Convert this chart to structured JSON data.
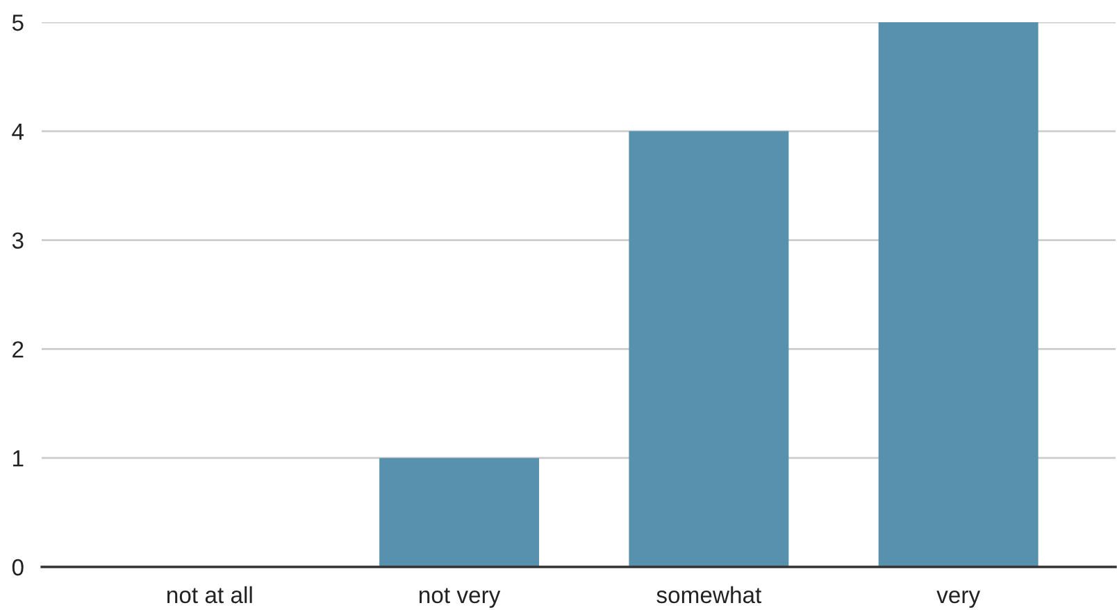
{
  "chart_data": {
    "type": "bar",
    "categories": [
      "not at all",
      "not very",
      "somewhat",
      "very"
    ],
    "values": [
      0,
      1,
      4,
      5
    ],
    "color": "#5891ae",
    "ylim": [
      0,
      5
    ],
    "yticks": [
      0,
      1,
      2,
      3,
      4,
      5
    ],
    "grid": "y"
  }
}
